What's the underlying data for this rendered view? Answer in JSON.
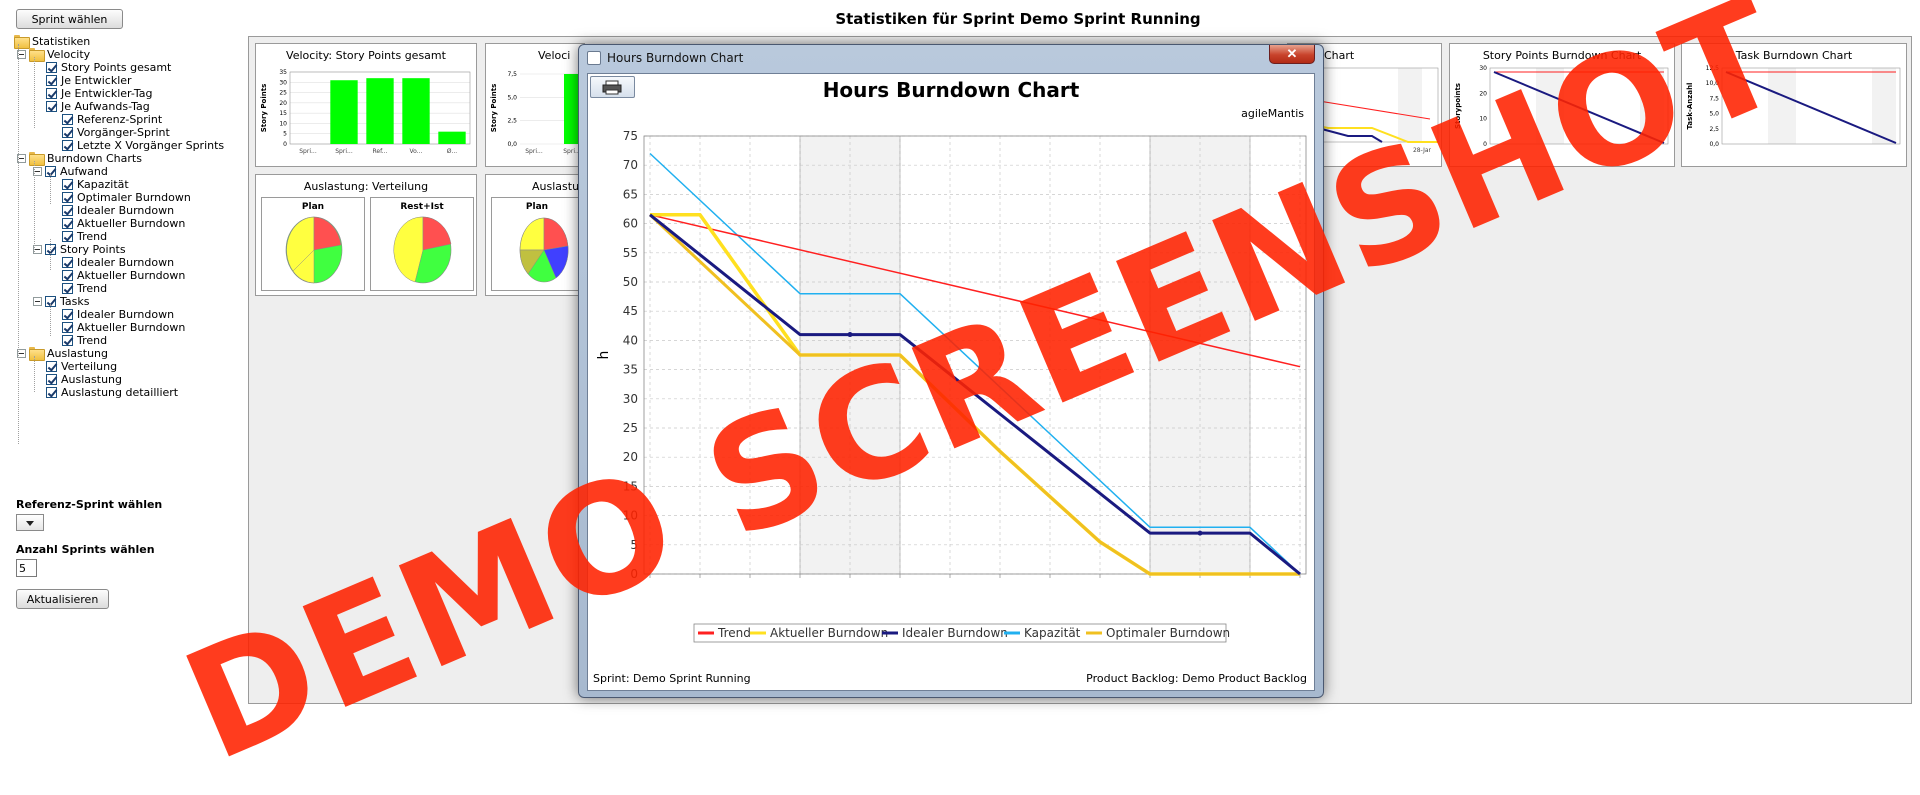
{
  "sidebar": {
    "sprint_button": "Sprint wählen",
    "tree": [
      {
        "label": "Statistiken",
        "kind": "folder",
        "level": 0,
        "expander": false
      },
      {
        "label": "Velocity",
        "kind": "folder",
        "level": 1,
        "expander": true
      },
      {
        "label": "Story Points gesamt",
        "kind": "check",
        "level": 2
      },
      {
        "label": "Je Entwickler",
        "kind": "check",
        "level": 2
      },
      {
        "label": "Je Entwickler-Tag",
        "kind": "check",
        "level": 2
      },
      {
        "label": "Je Aufwands-Tag",
        "kind": "check",
        "level": 2
      },
      {
        "label": "Referenz-Sprint",
        "kind": "check",
        "level": 2,
        "indent": 16
      },
      {
        "label": "Vorgänger-Sprint",
        "kind": "check",
        "level": 2,
        "indent": 16
      },
      {
        "label": "Letzte X Vorgänger Sprints",
        "kind": "check",
        "level": 2,
        "indent": 16
      },
      {
        "label": "Burndown Charts",
        "kind": "folder",
        "level": 1,
        "expander": true
      },
      {
        "label": "Aufwand",
        "kind": "check",
        "level": 2,
        "expander": true
      },
      {
        "label": "Kapazität",
        "kind": "check",
        "level": 3
      },
      {
        "label": "Optimaler Burndown",
        "kind": "check",
        "level": 3
      },
      {
        "label": "Idealer Burndown",
        "kind": "check",
        "level": 3
      },
      {
        "label": "Aktueller Burndown",
        "kind": "check",
        "level": 3
      },
      {
        "label": "Trend",
        "kind": "check",
        "level": 3
      },
      {
        "label": "Story Points",
        "kind": "check",
        "level": 2,
        "expander": true
      },
      {
        "label": "Idealer Burndown",
        "kind": "check",
        "level": 3
      },
      {
        "label": "Aktueller Burndown",
        "kind": "check",
        "level": 3
      },
      {
        "label": "Trend",
        "kind": "check",
        "level": 3
      },
      {
        "label": "Tasks",
        "kind": "check",
        "level": 2,
        "expander": true
      },
      {
        "label": "Idealer Burndown",
        "kind": "check",
        "level": 3
      },
      {
        "label": "Aktueller Burndown",
        "kind": "check",
        "level": 3
      },
      {
        "label": "Trend",
        "kind": "check",
        "level": 3
      },
      {
        "label": "Auslastung",
        "kind": "folder",
        "level": 1,
        "expander": true
      },
      {
        "label": "Verteilung",
        "kind": "check",
        "level": 2
      },
      {
        "label": "Auslastung",
        "kind": "check",
        "level": 2
      },
      {
        "label": "Auslastung detailliert",
        "kind": "check",
        "level": 2
      }
    ],
    "reference_label": "Referenz-Sprint wählen",
    "count_label": "Anzahl Sprints wählen",
    "count_value": "5",
    "refresh_button": "Aktualisieren"
  },
  "header": {
    "title": "Statistiken für Sprint Demo Sprint Running"
  },
  "cards": {
    "velocity_total": {
      "title": "Velocity: Story Points gesamt",
      "ylabel": "Story Points",
      "yticks": [
        "35",
        "30",
        "25",
        "20",
        "15",
        "10",
        "5",
        "0"
      ],
      "xticks": [
        "Spri...",
        "Spri...",
        "Ref...",
        "Vo...",
        "Ø..."
      ],
      "values": [
        0,
        31,
        32,
        32,
        6
      ]
    },
    "velocity_second": {
      "title": "Veloci",
      "ylabel": "Story Points",
      "yticks": [
        "7,5",
        "5,0",
        "2,5",
        "0,0"
      ],
      "xticks": [
        "Spri...",
        "Spri..."
      ]
    },
    "hours_small": {
      "title": "Chart",
      "xtick": "28-Jar"
    },
    "story_burndown": {
      "title": "Story Points Burndown Chart",
      "ylabel": "Storypoints",
      "yticks": [
        "30",
        "20",
        "10",
        "0"
      ]
    },
    "task_burndown": {
      "title": "Task Burndown Chart",
      "ylabel": "Task-Anzahl",
      "yticks": [
        "12,5",
        "10,0",
        "7,5",
        "5,0",
        "2,5",
        "0,0"
      ]
    },
    "distribution": {
      "title": "Auslastung: Verteilung",
      "plan": "Plan",
      "rest": "Rest+Ist"
    },
    "distribution_second": {
      "title": "Auslastu",
      "plan": "Plan"
    }
  },
  "dialog": {
    "title": "Hours Burndown Chart",
    "close": "✕",
    "subtitle": "agileMantis",
    "footer_left": "Sprint: Demo Sprint Running",
    "footer_right": "Product Backlog: Demo Product Backlog"
  },
  "chart_data": {
    "type": "line",
    "title": "Hours Burndown Chart",
    "ylabel": "h",
    "xlabel": "",
    "ylim": [
      0,
      75
    ],
    "yticks": [
      0,
      5,
      10,
      15,
      20,
      25,
      30,
      35,
      40,
      45,
      50,
      55,
      60,
      65,
      70,
      75
    ],
    "x": [
      0,
      1,
      2,
      3,
      4,
      5,
      6,
      7,
      8,
      9,
      10,
      11,
      12,
      13
    ],
    "weekend_bands": [
      [
        3,
        5
      ],
      [
        10,
        12
      ]
    ],
    "series": [
      {
        "name": "Trend",
        "color": "#ff2020",
        "width": 1.5,
        "points": [
          [
            0,
            61.5
          ],
          [
            13,
            35.5
          ]
        ]
      },
      {
        "name": "Aktueller Burndown",
        "color": "#ffe020",
        "width": 3.5,
        "points": [
          [
            0,
            61.5
          ],
          [
            1,
            61.5
          ],
          [
            3,
            37.5
          ],
          [
            5,
            37.5
          ],
          [
            7,
            21
          ],
          [
            9,
            5.5
          ],
          [
            10,
            0
          ],
          [
            13,
            0
          ]
        ]
      },
      {
        "name": "Idealer Burndown",
        "color": "#1a1a80",
        "width": 3,
        "points": [
          [
            0,
            61.5
          ],
          [
            3,
            41
          ],
          [
            5,
            41
          ],
          [
            10,
            7
          ],
          [
            12,
            7
          ],
          [
            13,
            0
          ]
        ],
        "marker_points": [
          [
            4,
            41
          ],
          [
            11,
            7
          ]
        ]
      },
      {
        "name": "Kapazität",
        "color": "#20b0f0",
        "width": 1.5,
        "points": [
          [
            0,
            72
          ],
          [
            3,
            48
          ],
          [
            5,
            48
          ],
          [
            10,
            8
          ],
          [
            12,
            8
          ],
          [
            13,
            0
          ]
        ]
      },
      {
        "name": "Optimaler Burndown",
        "color": "#f0c020",
        "width": 3,
        "points": [
          [
            0,
            61.5
          ],
          [
            3,
            37.5
          ],
          [
            5,
            37.5
          ],
          [
            7,
            21
          ],
          [
            9,
            5.5
          ],
          [
            10,
            0
          ],
          [
            13,
            0
          ]
        ]
      }
    ],
    "legend": [
      "Trend",
      "Aktueller Burndown",
      "Idealer Burndown",
      "Kapazität",
      "Optimaler Burndown"
    ],
    "legend_placement": "bottom",
    "grid": true
  },
  "watermark": "DEMO SCREENSHOT",
  "colors": {
    "bar": "#00ff00",
    "trend": "#ff2020",
    "ideal": "#1a1a80",
    "watermark": "#ff2200"
  }
}
